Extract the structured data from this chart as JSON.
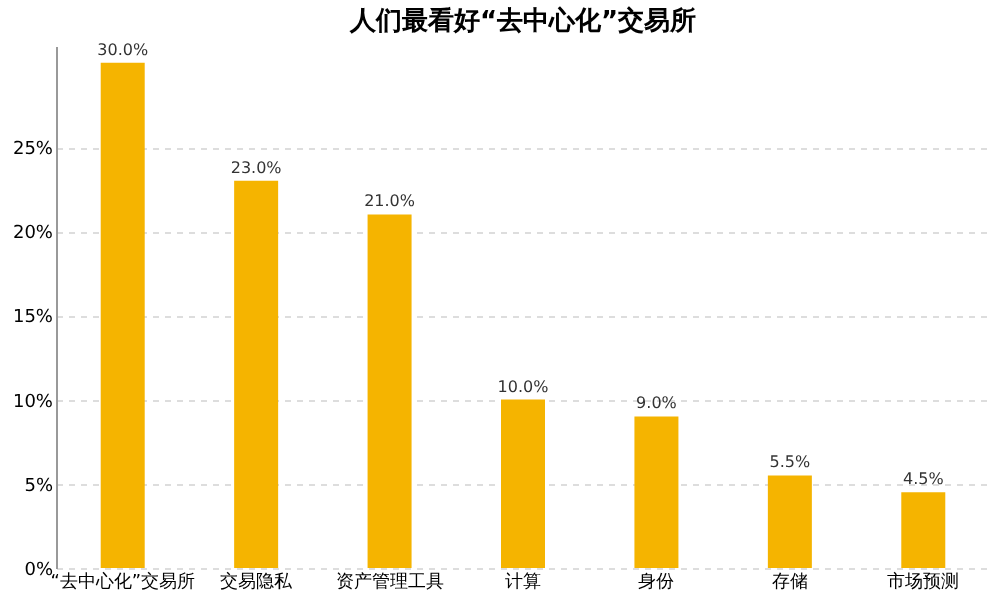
{
  "chart_data": {
    "type": "bar",
    "title": "人们最看好“去中心化”交易所",
    "categories": [
      "“去中心化”交易所",
      "交易隐私",
      "资产管理工具",
      "计算",
      "身份",
      "存储",
      "市场预测"
    ],
    "values": [
      30.0,
      23.0,
      21.0,
      10.0,
      9.0,
      5.5,
      4.5
    ],
    "color": "#f5b400",
    "ylim": [
      0,
      31
    ],
    "yticks": [
      {
        "value": 0,
        "label": "0%"
      },
      {
        "value": 5,
        "label": "5%"
      },
      {
        "value": 10,
        "label": "10%"
      },
      {
        "value": 15,
        "label": "15%"
      },
      {
        "value": 20,
        "label": "20%"
      },
      {
        "value": 25,
        "label": "25%"
      }
    ],
    "grid": "y",
    "value_labels": [
      "30.0%",
      "23.0%",
      "21.0%",
      "10.0%",
      "9.0%",
      "5.5%",
      "4.5%"
    ]
  }
}
